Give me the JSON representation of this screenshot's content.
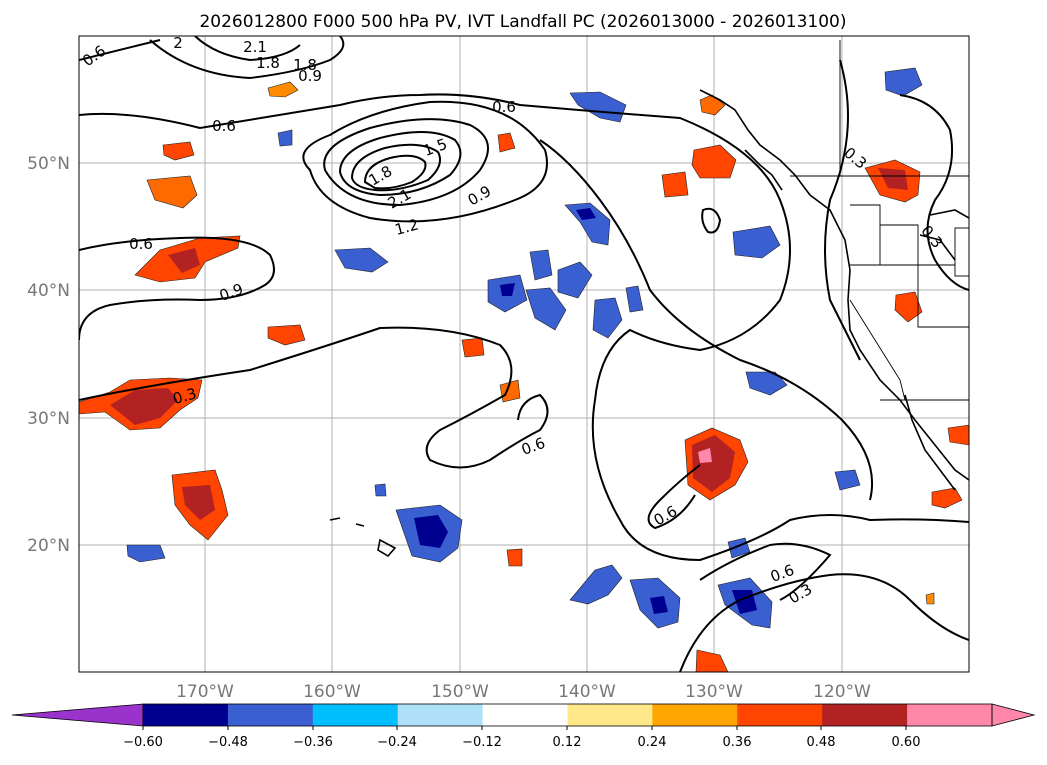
{
  "title": "2026012800 F000 500 hPa PV, IVT Landfall PC (2026013000 - 2026013100)",
  "lat_ticks": [
    "50°N",
    "40°N",
    "30°N",
    "20°N"
  ],
  "lon_ticks": [
    "170°W",
    "160°W",
    "150°W",
    "140°W",
    "130°W",
    "120°W"
  ],
  "contour_labels": [
    "0.6",
    "2",
    "2.1",
    "1.8",
    "1.8",
    "0.9",
    "0.6",
    "0.6",
    "1.5",
    "1.8",
    "2.1",
    "1.2",
    "0.9",
    "0.6",
    "0.9",
    "0.3",
    "0.6",
    "0.6",
    "0.6",
    "0.3",
    "0.3",
    "0.3"
  ],
  "colorbar": {
    "ticks": [
      "−0.60",
      "−0.48",
      "−0.36",
      "−0.24",
      "−0.12",
      "0.12",
      "0.24",
      "0.36",
      "0.48",
      "0.60"
    ],
    "colors": [
      "#9933cc",
      "#000090",
      "#3a5fd0",
      "#00bfff",
      "#aee0f8",
      "#ffffff",
      "#ffe88a",
      "#ffa500",
      "#ff4500",
      "#b22222",
      "#ff88aa",
      "#ff88aa"
    ]
  }
}
